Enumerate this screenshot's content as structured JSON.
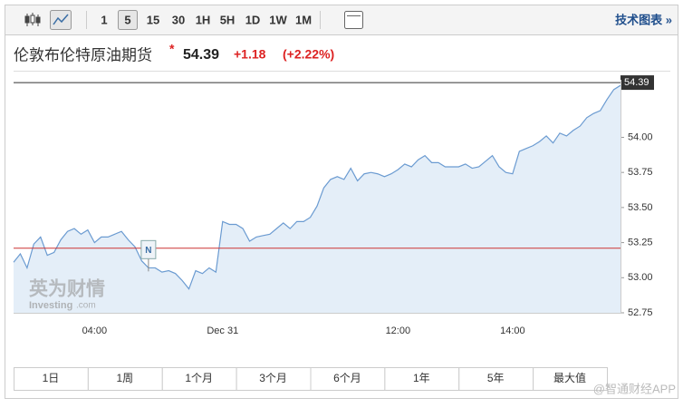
{
  "toolbar": {
    "intervals": [
      "1",
      "5",
      "15",
      "30",
      "1H",
      "5H",
      "1D",
      "1W",
      "1M"
    ],
    "selected": "5",
    "link": "技术图表 »"
  },
  "header": {
    "title": "伦敦布伦特原油期货",
    "star": "*",
    "price": "54.39",
    "change": "+1.18",
    "change_pct": "(+2.22%)"
  },
  "chart_data": {
    "type": "line",
    "categories": [
      null,
      null,
      null,
      null,
      null,
      null,
      null,
      null,
      null,
      null,
      null,
      null,
      "04:00",
      null,
      null,
      null,
      null,
      null,
      null,
      null,
      null,
      null,
      null,
      null,
      null,
      null,
      null,
      null,
      null,
      null,
      null,
      "Dec 31",
      null,
      null,
      null,
      null,
      null,
      null,
      null,
      null,
      null,
      null,
      null,
      null,
      null,
      null,
      null,
      null,
      null,
      null,
      null,
      null,
      null,
      null,
      null,
      null,
      null,
      "12:00",
      null,
      null,
      null,
      null,
      null,
      null,
      null,
      null,
      null,
      null,
      null,
      null,
      null,
      null,
      null,
      null,
      "14:00",
      null,
      null,
      null,
      null,
      null,
      null,
      null,
      null,
      null,
      null,
      null,
      null,
      null,
      null,
      null,
      null
    ],
    "series": [
      {
        "name": "Brent",
        "color": "#6b9bd1",
        "values": [
          53.11,
          53.17,
          53.07,
          53.24,
          53.29,
          53.16,
          53.18,
          53.27,
          53.33,
          53.35,
          53.31,
          53.34,
          53.25,
          53.29,
          53.29,
          53.31,
          53.33,
          53.27,
          53.22,
          53.12,
          53.07,
          53.07,
          53.04,
          53.05,
          53.03,
          52.98,
          52.92,
          53.05,
          53.03,
          53.07,
          53.04,
          53.4,
          53.38,
          53.38,
          53.35,
          53.26,
          53.29,
          53.3,
          53.31,
          53.35,
          53.39,
          53.35,
          53.4,
          53.4,
          53.43,
          53.51,
          53.64,
          53.7,
          53.72,
          53.7,
          53.78,
          53.69,
          53.74,
          53.75,
          53.74,
          53.72,
          53.74,
          53.77,
          53.81,
          53.79,
          53.84,
          53.87,
          53.82,
          53.82,
          53.79,
          53.79,
          53.79,
          53.81,
          53.78,
          53.79,
          53.83,
          53.87,
          53.79,
          53.75,
          53.74,
          53.9,
          53.92,
          53.94,
          53.97,
          54.01,
          53.96,
          54.03,
          54.01,
          54.05,
          54.08,
          54.14,
          54.17,
          54.19,
          54.27,
          54.34,
          54.37
        ]
      }
    ],
    "ylim": [
      52.75,
      54.41
    ],
    "yticks": [
      {
        "value": 54,
        "label": "54.00"
      },
      53.75,
      {
        "value": 53.5,
        "label": "53.50"
      },
      53.25,
      {
        "value": 53,
        "label": "53.00"
      },
      52.75
    ],
    "last_price": {
      "value": 54.39,
      "label": "54.39"
    },
    "reference_line": 53.21,
    "annotation": {
      "label": "N",
      "index": 20,
      "value": 53.2
    },
    "fill": "#e4eef8"
  },
  "range_tabs": [
    "1日",
    "1周",
    "1个月",
    "3个月",
    "6个月",
    "1年",
    "5年",
    "最大值"
  ],
  "watermarks": {
    "logo": "英为财情",
    "site": "Investing",
    "site_suffix": ".com",
    "credit": "@智通财经APP"
  }
}
